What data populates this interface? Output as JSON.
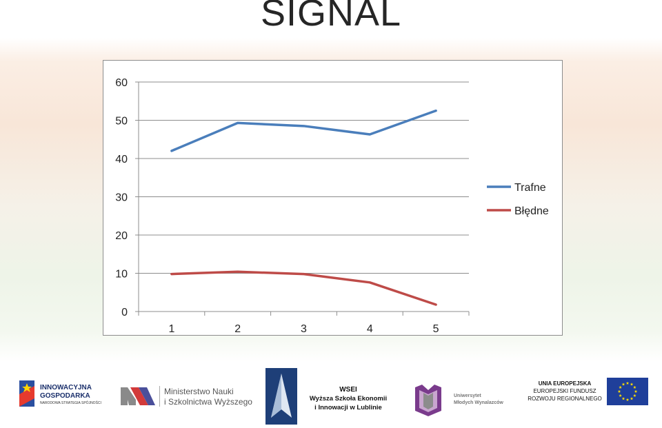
{
  "slide": {
    "title": "SIGNAL"
  },
  "chart_data": {
    "type": "line",
    "x": [
      "1",
      "2",
      "3",
      "4",
      "5"
    ],
    "series": [
      {
        "name": "Trafne",
        "values": [
          42,
          49.3,
          48.5,
          46.3,
          52.5
        ],
        "color": "#4a7ebb"
      },
      {
        "name": "Błędne",
        "values": [
          9.8,
          10.4,
          9.8,
          7.6,
          1.8
        ],
        "color": "#be4b48"
      }
    ],
    "ylim": [
      0,
      60
    ],
    "yticks": [
      "0",
      "10",
      "20",
      "30",
      "40",
      "50",
      "60"
    ],
    "grid": true,
    "legend": "right"
  },
  "logos": {
    "ig_line1": "INNOWACYJNA",
    "ig_line2": "GOSPODARKA",
    "ig_line3": "NARODOWA STRATEGIA SPÓJNOŚCI",
    "min_line1": "Ministerstwo Nauki",
    "min_line2": "i Szkolnictwa Wyższego",
    "wsei_line1": "WSEI",
    "wsei_line2": "Wyższa Szkoła Ekonomii",
    "wsei_line3": "i Innowacji w Lublinie",
    "umw_line1": "Uniwersytet",
    "umw_line2": "Młodych Wynalazców",
    "eu_line1": "UNIA EUROPEJSKA",
    "eu_line2": "EUROPEJSKI FUNDUSZ",
    "eu_line3": "ROZWOJU REGIONALNEGO",
    "colors": {
      "eu_blue": "#1f3f9a",
      "eu_star": "#ffdd00",
      "wsei_blue": "#1e3f78",
      "umw_purple": "#7a3b8c"
    }
  }
}
